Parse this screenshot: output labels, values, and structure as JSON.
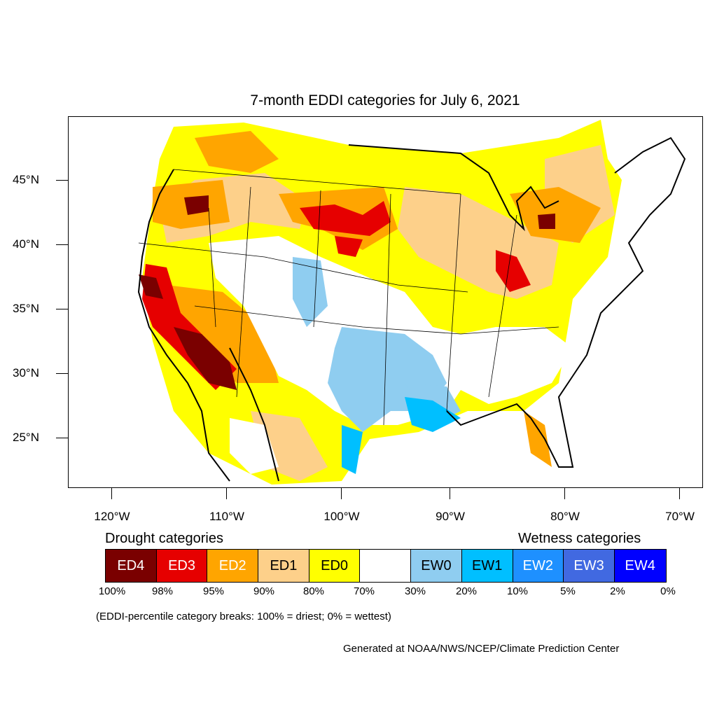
{
  "title": "7-month EDDI categories for July 6, 2021",
  "latitude_labels": [
    "45°N",
    "40°N",
    "35°N",
    "30°N",
    "25°N"
  ],
  "longitude_labels": [
    "120°W",
    "110°W",
    "100°W",
    "90°W",
    "80°W",
    "70°W"
  ],
  "legend": {
    "drought_title": "Drought categories",
    "wetness_title": "Wetness categories",
    "categories": [
      {
        "label": "ED4",
        "color": "#7a0000",
        "text_color": "#ffffff"
      },
      {
        "label": "ED3",
        "color": "#e60000",
        "text_color": "#ffffff"
      },
      {
        "label": "ED2",
        "color": "#ffa500",
        "text_color": "#ffffff"
      },
      {
        "label": "ED1",
        "color": "#fdd08a",
        "text_color": "#000000"
      },
      {
        "label": "ED0",
        "color": "#ffff00",
        "text_color": "#000000"
      },
      {
        "label": "",
        "color": "#ffffff",
        "text_color": "#000000"
      },
      {
        "label": "EW0",
        "color": "#8fcdf0",
        "text_color": "#000000"
      },
      {
        "label": "EW1",
        "color": "#00bfff",
        "text_color": "#000000"
      },
      {
        "label": "EW2",
        "color": "#1e90ff",
        "text_color": "#ffffff"
      },
      {
        "label": "EW3",
        "color": "#4169e1",
        "text_color": "#ffffff"
      },
      {
        "label": "EW4",
        "color": "#0000ff",
        "text_color": "#ffffff"
      }
    ],
    "breaks": [
      "100%",
      "98%",
      "95%",
      "90%",
      "80%",
      "70%",
      "30%",
      "20%",
      "10%",
      "5%",
      "2%",
      "0%"
    ]
  },
  "note": "(EDDI-percentile category breaks: 100% = driest; 0% = wettest)",
  "credit": "Generated at NOAA/NWS/NCEP/Climate Prediction Center"
}
